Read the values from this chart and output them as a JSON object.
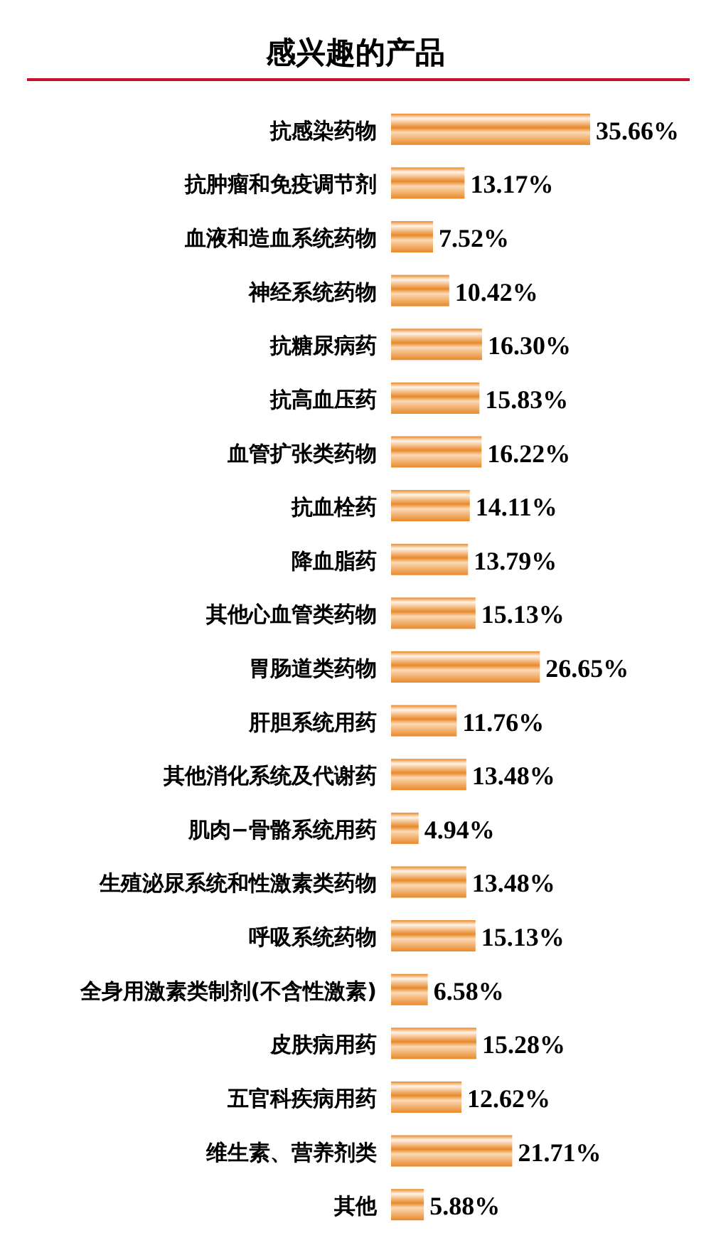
{
  "chart_data": {
    "type": "bar",
    "orientation": "horizontal",
    "title": "感兴趣的产品",
    "categories": [
      "抗感染药物",
      "抗肿瘤和免疫调节剂",
      "血液和造血系统药物",
      "神经系统药物",
      "抗糖尿病药",
      "抗高血压药",
      "血管扩张类药物",
      "抗血栓药",
      "降血脂药",
      "其他心血管类药物",
      "胃肠道类药物",
      "肝胆系统用药",
      "其他消化系统及代谢药",
      "肌肉−骨骼系统用药",
      "生殖泌尿系统和性激素类药物",
      "呼吸系统药物",
      "全身用激素类制剂(不含性激素)",
      "皮肤病用药",
      "五官科疾病用药",
      "维生素、营养剂类",
      "其他"
    ],
    "values": [
      35.66,
      13.17,
      7.52,
      10.42,
      16.3,
      15.83,
      16.22,
      14.11,
      13.79,
      15.13,
      26.65,
      11.76,
      13.48,
      4.94,
      13.48,
      15.13,
      6.58,
      15.28,
      12.62,
      21.71,
      5.88
    ],
    "value_labels": [
      "35.66%",
      "13.17%",
      "7.52%",
      "10.42%",
      "16.30%",
      "15.83%",
      "16.22%",
      "14.11%",
      "13.79%",
      "15.13%",
      "26.65%",
      "11.76%",
      "13.48%",
      "4.94%",
      "13.48%",
      "15.13%",
      "6.58%",
      "15.28%",
      "12.62%",
      "21.71%",
      "5.88%"
    ],
    "color": "#e8892a"
  }
}
